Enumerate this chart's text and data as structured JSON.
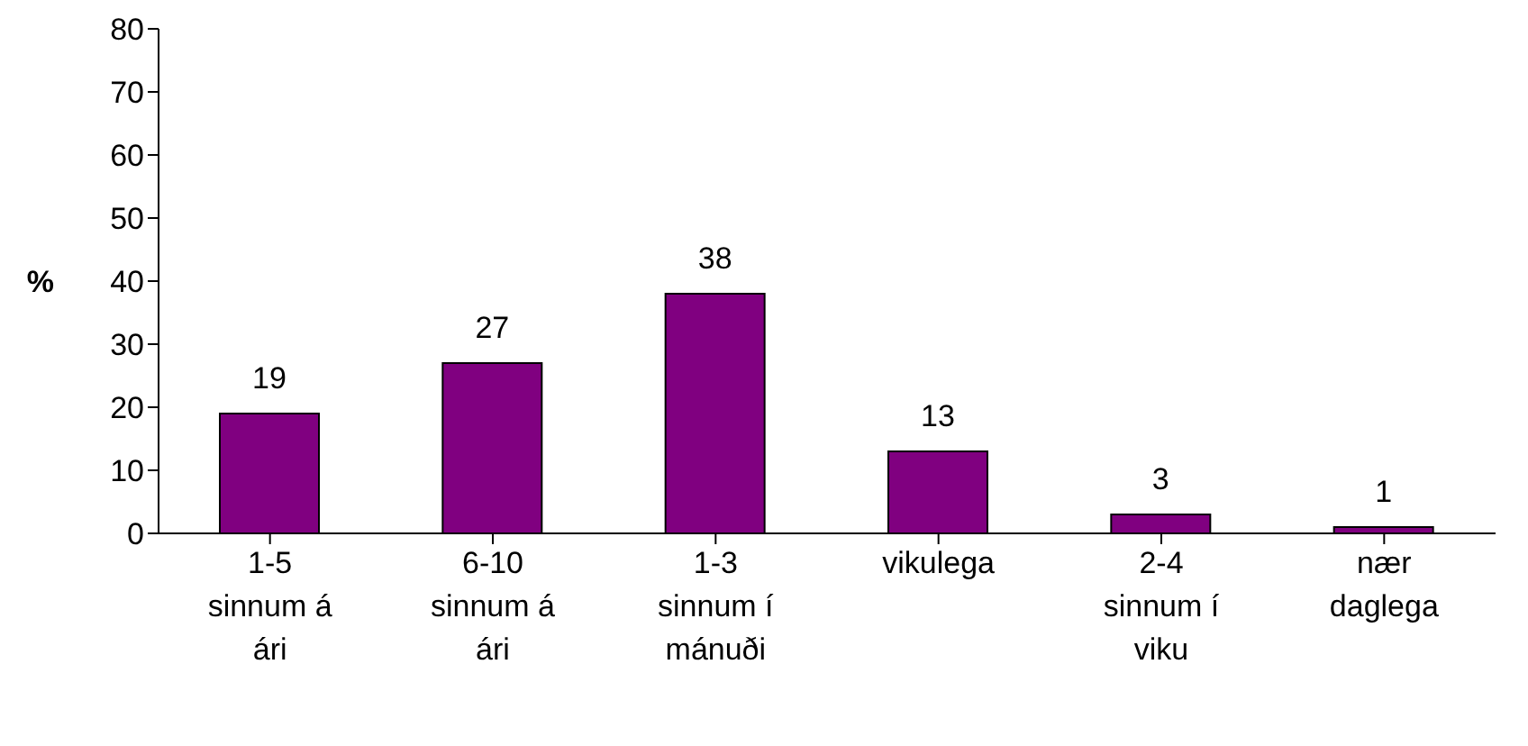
{
  "chart_data": {
    "type": "bar",
    "ylabel": "%",
    "categories": [
      "1-5 sinnum á ári",
      "6-10 sinnum á ári",
      "1-3 sinnum í mánuði",
      "vikulega",
      "2-4 sinnum í viku",
      "nær daglega"
    ],
    "values": [
      19,
      27,
      38,
      13,
      3,
      1
    ],
    "color": "#800080",
    "ylim": [
      0,
      80
    ],
    "yticks": [
      0,
      10,
      20,
      30,
      40,
      50,
      60,
      70,
      80
    ],
    "data_labels": true
  }
}
